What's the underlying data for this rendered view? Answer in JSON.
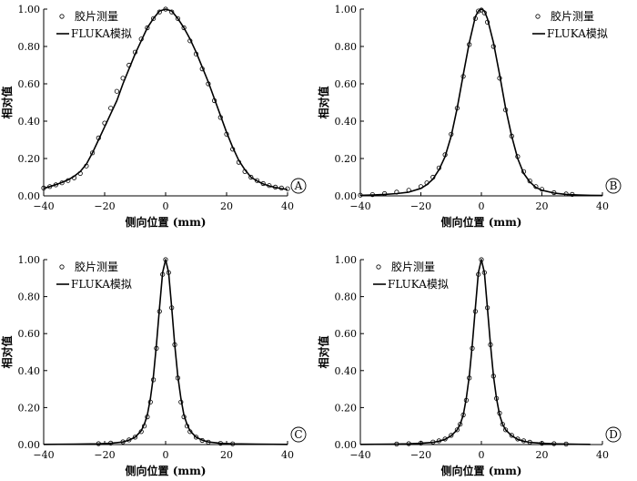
{
  "chart_data": [
    {
      "type": "line",
      "panel": "A",
      "xlabel": "侧向位置 (mm)",
      "ylabel": "相对值",
      "xlim": [
        -40,
        40
      ],
      "ylim": [
        0,
        1
      ],
      "xticks": [
        "−40",
        "−20",
        "0",
        "20",
        "40"
      ],
      "yticks": [
        "0.00",
        "0.20",
        "0.40",
        "0.60",
        "0.80",
        "1.00"
      ],
      "legend": [
        "胶片测量",
        "FLUKA模拟"
      ],
      "legend_position": "top-left",
      "series": [
        {
          "name": "胶片测量",
          "style": "markers",
          "x": [
            -40,
            -38,
            -36,
            -34,
            -32,
            -30,
            -28,
            -26,
            -24,
            -22,
            -20,
            -18,
            -16,
            -14,
            -12,
            -10,
            -8,
            -6,
            -4,
            -2,
            0,
            2,
            4,
            6,
            8,
            10,
            12,
            14,
            16,
            18,
            20,
            22,
            24,
            26,
            28,
            30,
            32,
            34,
            36,
            38,
            40
          ],
          "y": [
            0.042,
            0.05,
            0.059,
            0.07,
            0.082,
            0.097,
            0.12,
            0.16,
            0.23,
            0.31,
            0.39,
            0.47,
            0.56,
            0.63,
            0.7,
            0.77,
            0.84,
            0.9,
            0.95,
            0.985,
            1.0,
            0.985,
            0.95,
            0.9,
            0.83,
            0.76,
            0.68,
            0.6,
            0.51,
            0.42,
            0.33,
            0.25,
            0.18,
            0.13,
            0.1,
            0.082,
            0.066,
            0.055,
            0.047,
            0.042,
            0.038
          ]
        },
        {
          "name": "FLUKA模拟",
          "style": "line",
          "x": [
            -40,
            -38,
            -36,
            -34,
            -32,
            -30,
            -28,
            -26,
            -24,
            -22,
            -20,
            -18,
            -16,
            -14,
            -12,
            -10,
            -8,
            -6,
            -4,
            -2,
            0,
            2,
            4,
            6,
            8,
            10,
            12,
            14,
            16,
            18,
            20,
            22,
            24,
            26,
            28,
            30,
            32,
            34,
            36,
            38,
            40
          ],
          "y": [
            0.04,
            0.05,
            0.06,
            0.072,
            0.086,
            0.105,
            0.13,
            0.17,
            0.23,
            0.3,
            0.37,
            0.44,
            0.51,
            0.6,
            0.68,
            0.76,
            0.83,
            0.9,
            0.95,
            0.99,
            1.0,
            0.99,
            0.95,
            0.9,
            0.84,
            0.77,
            0.69,
            0.61,
            0.52,
            0.43,
            0.34,
            0.26,
            0.19,
            0.14,
            0.1,
            0.08,
            0.064,
            0.053,
            0.045,
            0.039,
            0.034
          ]
        }
      ]
    },
    {
      "type": "line",
      "panel": "B",
      "xlabel": "侧向位置 (mm)",
      "ylabel": "相对值",
      "xlim": [
        -40,
        40
      ],
      "ylim": [
        0,
        1
      ],
      "xticks": [
        "−40",
        "−20",
        "0",
        "20",
        "40"
      ],
      "yticks": [
        "0.00",
        "0.20",
        "0.40",
        "0.60",
        "0.80",
        "1.00"
      ],
      "legend": [
        "胶片测量",
        "FLUKA模拟"
      ],
      "legend_position": "top-right",
      "series": [
        {
          "name": "胶片测量",
          "style": "markers",
          "x": [
            -40,
            -36,
            -32,
            -28,
            -24,
            -20,
            -18,
            -16,
            -14,
            -12,
            -10,
            -8,
            -6,
            -4,
            -2,
            -1,
            0,
            1,
            2,
            4,
            6,
            8,
            10,
            12,
            14,
            16,
            18,
            20,
            24,
            28,
            30
          ],
          "y": [
            0.004,
            0.007,
            0.012,
            0.02,
            0.03,
            0.05,
            0.07,
            0.1,
            0.15,
            0.22,
            0.33,
            0.47,
            0.64,
            0.81,
            0.95,
            0.99,
            0.995,
            0.98,
            0.93,
            0.8,
            0.63,
            0.46,
            0.32,
            0.21,
            0.13,
            0.08,
            0.05,
            0.035,
            0.017,
            0.01,
            0.008
          ]
        },
        {
          "name": "FLUKA模拟",
          "style": "line",
          "x": [
            -40,
            -36,
            -32,
            -28,
            -24,
            -20,
            -18,
            -16,
            -14,
            -12,
            -10,
            -8,
            -6,
            -4,
            -2,
            -1,
            0,
            1,
            2,
            4,
            6,
            8,
            10,
            12,
            14,
            16,
            18,
            20,
            24,
            28,
            32,
            36,
            40
          ],
          "y": [
            0.003,
            0.005,
            0.008,
            0.012,
            0.02,
            0.04,
            0.06,
            0.09,
            0.14,
            0.21,
            0.32,
            0.47,
            0.65,
            0.82,
            0.96,
            0.99,
            1.0,
            0.99,
            0.95,
            0.82,
            0.65,
            0.47,
            0.32,
            0.2,
            0.12,
            0.075,
            0.045,
            0.03,
            0.015,
            0.008,
            0.005,
            0.003,
            0.002
          ]
        }
      ]
    },
    {
      "type": "line",
      "panel": "C",
      "xlabel": "侧向位置 (mm)",
      "ylabel": "相对值",
      "xlim": [
        -40,
        40
      ],
      "ylim": [
        0,
        1
      ],
      "xticks": [
        "−40",
        "−20",
        "0",
        "20",
        "40"
      ],
      "yticks": [
        "0.00",
        "0.20",
        "0.40",
        "0.60",
        "0.80",
        "1.00"
      ],
      "legend": [
        "胶片测量",
        "FLUKA模拟"
      ],
      "legend_position": "top-left",
      "series": [
        {
          "name": "胶片测量",
          "style": "markers",
          "x": [
            -22,
            -18,
            -14,
            -12,
            -10,
            -8,
            -7,
            -6,
            -5,
            -4,
            -3,
            -2,
            -1,
            0,
            1,
            2,
            3,
            4,
            5,
            6,
            7,
            8,
            10,
            12,
            14,
            18,
            22
          ],
          "y": [
            0.005,
            0.008,
            0.015,
            0.025,
            0.04,
            0.07,
            0.1,
            0.15,
            0.23,
            0.35,
            0.52,
            0.72,
            0.92,
            1.0,
            0.93,
            0.74,
            0.54,
            0.36,
            0.23,
            0.15,
            0.1,
            0.07,
            0.04,
            0.022,
            0.013,
            0.007,
            0.004
          ]
        },
        {
          "name": "FLUKA模拟",
          "style": "line",
          "x": [
            -40,
            -30,
            -22,
            -18,
            -14,
            -12,
            -10,
            -8,
            -7,
            -6,
            -5,
            -4,
            -3,
            -2,
            -1,
            0,
            1,
            2,
            3,
            4,
            5,
            6,
            7,
            8,
            10,
            12,
            14,
            18,
            22,
            30,
            40
          ],
          "y": [
            0.001,
            0.002,
            0.004,
            0.007,
            0.014,
            0.024,
            0.04,
            0.075,
            0.11,
            0.16,
            0.25,
            0.37,
            0.54,
            0.74,
            0.93,
            1.0,
            0.93,
            0.74,
            0.54,
            0.37,
            0.25,
            0.16,
            0.11,
            0.075,
            0.04,
            0.024,
            0.014,
            0.007,
            0.004,
            0.002,
            0.001
          ]
        }
      ]
    },
    {
      "type": "line",
      "panel": "D",
      "xlabel": "侧向位置 (mm)",
      "ylabel": "相对值",
      "xlim": [
        -40,
        40
      ],
      "ylim": [
        0,
        1
      ],
      "xticks": [
        "−40",
        "−20",
        "0",
        "20",
        "40"
      ],
      "yticks": [
        "0.00",
        "0.20",
        "0.40",
        "0.60",
        "0.80",
        "1.00"
      ],
      "legend": [
        "胶片测量",
        "FLUKA模拟"
      ],
      "legend_position": "top-left",
      "series": [
        {
          "name": "胶片测量",
          "style": "markers",
          "x": [
            -28,
            -24,
            -20,
            -16,
            -14,
            -12,
            -10,
            -8,
            -7,
            -6,
            -5,
            -4,
            -3,
            -2,
            -1,
            0,
            1,
            2,
            3,
            4,
            5,
            6,
            7,
            8,
            10,
            12,
            14,
            16,
            20,
            24,
            28
          ],
          "y": [
            0.003,
            0.005,
            0.008,
            0.014,
            0.02,
            0.03,
            0.05,
            0.08,
            0.11,
            0.16,
            0.24,
            0.36,
            0.52,
            0.72,
            0.92,
            1.0,
            0.93,
            0.74,
            0.54,
            0.37,
            0.25,
            0.17,
            0.11,
            0.08,
            0.05,
            0.03,
            0.02,
            0.013,
            0.007,
            0.005,
            0.003
          ]
        },
        {
          "name": "FLUKA模拟",
          "style": "line",
          "x": [
            -40,
            -30,
            -24,
            -20,
            -16,
            -14,
            -12,
            -10,
            -8,
            -7,
            -6,
            -5,
            -4,
            -3,
            -2,
            -1,
            0,
            1,
            2,
            3,
            4,
            5,
            6,
            7,
            8,
            10,
            12,
            14,
            16,
            20,
            24,
            30,
            36
          ],
          "y": [
            0.001,
            0.002,
            0.004,
            0.007,
            0.012,
            0.018,
            0.028,
            0.048,
            0.08,
            0.11,
            0.16,
            0.25,
            0.37,
            0.54,
            0.74,
            0.93,
            1.0,
            0.93,
            0.74,
            0.54,
            0.37,
            0.25,
            0.16,
            0.11,
            0.08,
            0.048,
            0.028,
            0.018,
            0.012,
            0.007,
            0.004,
            0.002,
            0.001
          ]
        }
      ]
    }
  ]
}
